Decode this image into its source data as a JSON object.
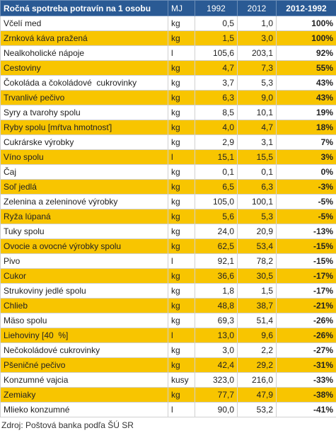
{
  "table": {
    "header": [
      "Ročná spotreba potravín na 1 osobu",
      "MJ",
      "1992",
      "2012",
      "2012-1992"
    ],
    "rows": [
      [
        "Včelí med",
        "kg",
        "0,5",
        "1,0",
        "100%"
      ],
      [
        "Zrnková káva pražená",
        "kg",
        "1,5",
        "3,0",
        "100%"
      ],
      [
        "Nealkoholické nápoje",
        "l",
        "105,6",
        "203,1",
        "92%"
      ],
      [
        "Cestoviny",
        "kg",
        "4,7",
        "7,3",
        "55%"
      ],
      [
        "Čokoláda a čokoládové  cukrovinky",
        "kg",
        "3,7",
        "5,3",
        "43%"
      ],
      [
        "Trvanlivé pečivo",
        "kg",
        "6,3",
        "9,0",
        "43%"
      ],
      [
        "Syry a tvarohy spolu",
        "kg",
        "8,5",
        "10,1",
        "19%"
      ],
      [
        "Ryby spolu [mŕtva hmotnosť]",
        "kg",
        "4,0",
        "4,7",
        "18%"
      ],
      [
        "Cukrárske výrobky",
        "kg",
        "2,9",
        "3,1",
        "7%"
      ],
      [
        "Víno spolu",
        "l",
        "15,1",
        "15,5",
        "3%"
      ],
      [
        "Čaj",
        "kg",
        "0,1",
        "0,1",
        "0%"
      ],
      [
        "Soľ jedlá",
        "kg",
        "6,5",
        "6,3",
        "-3%"
      ],
      [
        "Zelenina a zeleninové výrobky",
        "kg",
        "105,0",
        "100,1",
        "-5%"
      ],
      [
        "Ryža lúpaná",
        "kg",
        "5,6",
        "5,3",
        "-5%"
      ],
      [
        "Tuky spolu",
        "kg",
        "24,0",
        "20,9",
        "-13%"
      ],
      [
        "Ovocie a ovocné výrobky spolu",
        "kg",
        "62,5",
        "53,4",
        "-15%"
      ],
      [
        "Pivo",
        "l",
        "92,1",
        "78,2",
        "-15%"
      ],
      [
        "Cukor",
        "kg",
        "36,6",
        "30,5",
        "-17%"
      ],
      [
        "Strukoviny jedlé spolu",
        "kg",
        "1,8",
        "1,5",
        "-17%"
      ],
      [
        "Chlieb",
        "kg",
        "48,8",
        "38,7",
        "-21%"
      ],
      [
        "Mäso spolu",
        "kg",
        "69,3",
        "51,4",
        "-26%"
      ],
      [
        "Liehoviny [40  %]",
        "l",
        "13,0",
        "9,6",
        "-26%"
      ],
      [
        "Nečokoládové cukrovinky",
        "kg",
        "3,0",
        "2,2",
        "-27%"
      ],
      [
        "Pšeničné pečivo",
        "kg",
        "42,4",
        "29,2",
        "-31%"
      ],
      [
        "Konzumné vajcia",
        "kusy",
        "323,0",
        "216,0",
        "-33%"
      ],
      [
        "Zemiaky",
        "kg",
        "77,7",
        "47,9",
        "-38%"
      ],
      [
        "Mlieko konzumné",
        "l",
        "90,0",
        "53,2",
        "-41%"
      ]
    ],
    "source": "Zdroj: Poštová banka podľa ŠÚ SR"
  }
}
